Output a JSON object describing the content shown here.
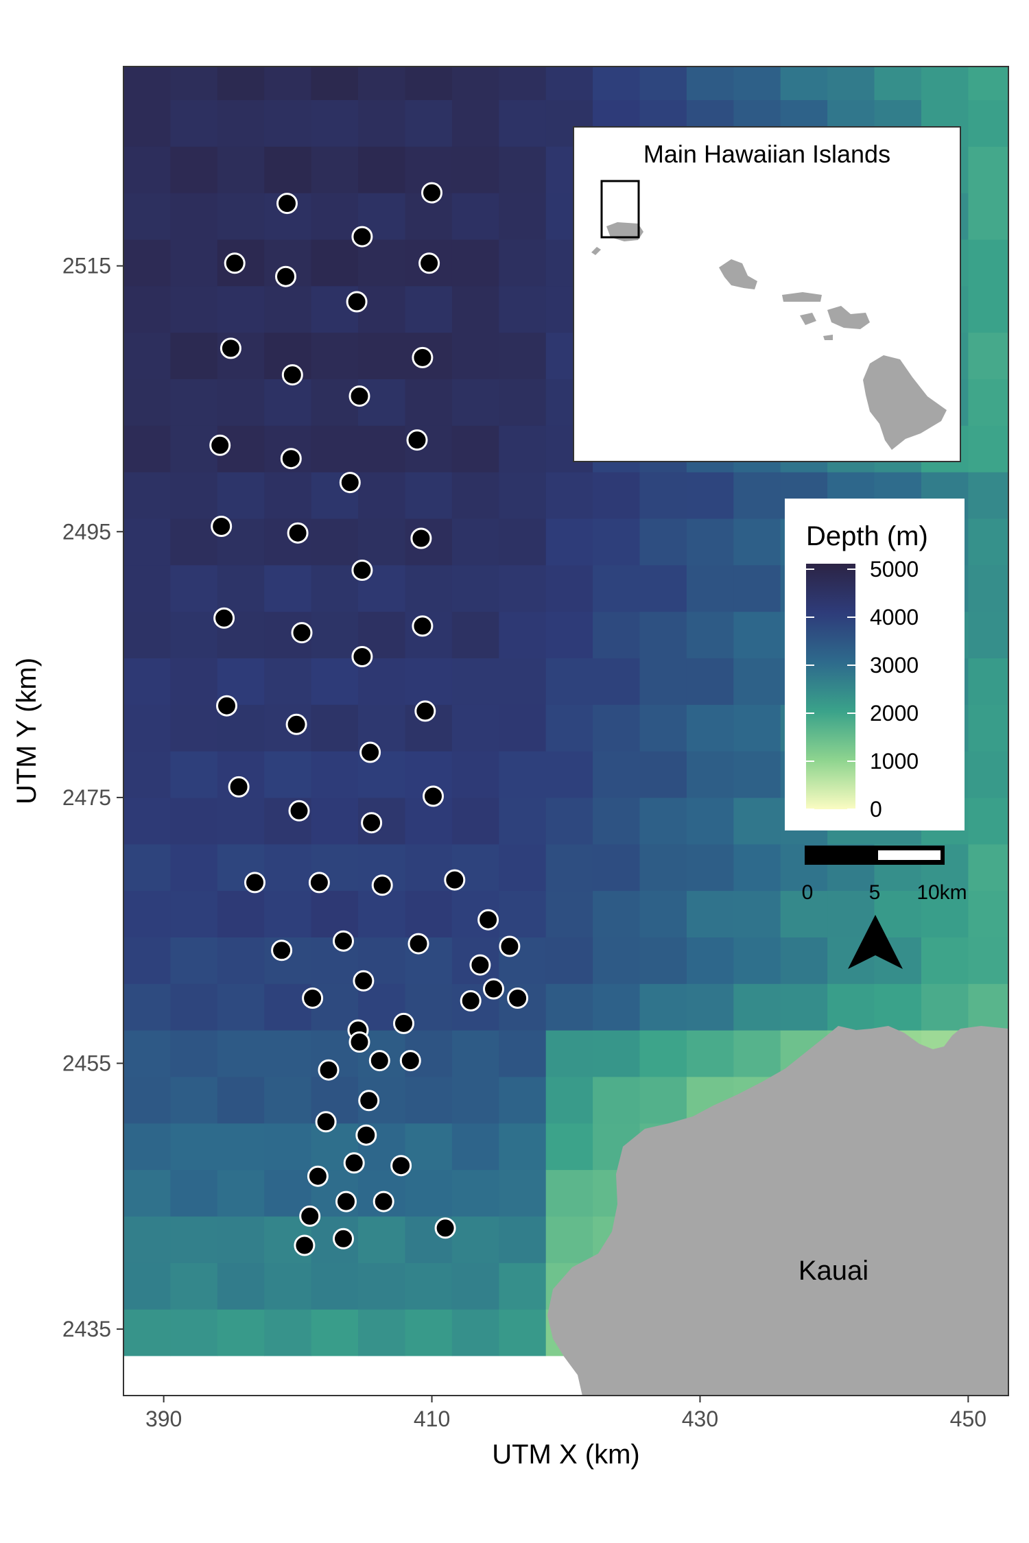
{
  "map": {
    "xlabel": "UTM X (km)",
    "ylabel": "UTM Y (km)",
    "xlim": [
      387,
      453
    ],
    "ylim": [
      2430,
      2530
    ],
    "x_ticks": [
      390,
      410,
      430,
      450
    ],
    "y_ticks": [
      2435,
      2455,
      2475,
      2495,
      2515
    ],
    "island_label": "Kauai",
    "inset_title": "Main Hawaiian Islands",
    "legend": {
      "title": "Depth (m)",
      "ticks": [
        5000,
        4000,
        3000,
        2000,
        1000,
        0
      ],
      "colors": [
        "#2c2445",
        "#2e3c7a",
        "#2e6a8c",
        "#3aa28a",
        "#8ed48f",
        "#fbfcc2"
      ]
    },
    "scalebar": {
      "labels": [
        "0",
        "5",
        "10km"
      ]
    },
    "land_color": "#a6a6a6",
    "station_color": "#000000"
  },
  "chart_data": {
    "type": "scatter",
    "xlabel": "UTM X (km)",
    "ylabel": "UTM Y (km)",
    "xlim": [
      387,
      453
    ],
    "ylim": [
      2430,
      2530
    ],
    "stations": [
      [
        399.2,
        2519.7
      ],
      [
        410.0,
        2520.5
      ],
      [
        404.8,
        2517.2
      ],
      [
        395.3,
        2515.2
      ],
      [
        399.1,
        2514.2
      ],
      [
        409.8,
        2515.2
      ],
      [
        404.4,
        2512.3
      ],
      [
        395.0,
        2508.8
      ],
      [
        399.6,
        2506.8
      ],
      [
        409.3,
        2508.1
      ],
      [
        404.6,
        2505.2
      ],
      [
        394.2,
        2501.5
      ],
      [
        399.5,
        2500.5
      ],
      [
        408.9,
        2501.9
      ],
      [
        403.9,
        2498.7
      ],
      [
        394.3,
        2495.4
      ],
      [
        400.0,
        2494.9
      ],
      [
        409.2,
        2494.5
      ],
      [
        404.8,
        2492.1
      ],
      [
        394.5,
        2488.5
      ],
      [
        400.3,
        2487.4
      ],
      [
        409.3,
        2487.9
      ],
      [
        404.8,
        2485.6
      ],
      [
        394.7,
        2481.9
      ],
      [
        399.9,
        2480.5
      ],
      [
        409.5,
        2481.5
      ],
      [
        405.4,
        2478.4
      ],
      [
        395.6,
        2475.8
      ],
      [
        400.1,
        2474.0
      ],
      [
        405.5,
        2473.1
      ],
      [
        410.1,
        2475.1
      ],
      [
        396.8,
        2468.6
      ],
      [
        401.6,
        2468.6
      ],
      [
        406.3,
        2468.4
      ],
      [
        411.7,
        2468.8
      ],
      [
        398.8,
        2463.5
      ],
      [
        403.4,
        2464.2
      ],
      [
        409.0,
        2464.0
      ],
      [
        414.2,
        2465.8
      ],
      [
        415.8,
        2463.8
      ],
      [
        404.9,
        2461.2
      ],
      [
        401.1,
        2459.9
      ],
      [
        413.6,
        2462.4
      ],
      [
        414.6,
        2460.6
      ],
      [
        416.4,
        2459.9
      ],
      [
        412.9,
        2459.7
      ],
      [
        404.5,
        2457.5
      ],
      [
        407.9,
        2458.0
      ],
      [
        404.6,
        2456.6
      ],
      [
        402.3,
        2454.5
      ],
      [
        406.1,
        2455.2
      ],
      [
        408.4,
        2455.2
      ],
      [
        405.3,
        2452.2
      ],
      [
        402.1,
        2450.6
      ],
      [
        405.1,
        2449.6
      ],
      [
        404.2,
        2447.5
      ],
      [
        407.7,
        2447.3
      ],
      [
        401.5,
        2446.5
      ],
      [
        403.6,
        2444.6
      ],
      [
        406.4,
        2444.6
      ],
      [
        400.9,
        2443.5
      ],
      [
        411.0,
        2442.6
      ],
      [
        403.4,
        2441.8
      ],
      [
        400.5,
        2441.3
      ]
    ]
  }
}
